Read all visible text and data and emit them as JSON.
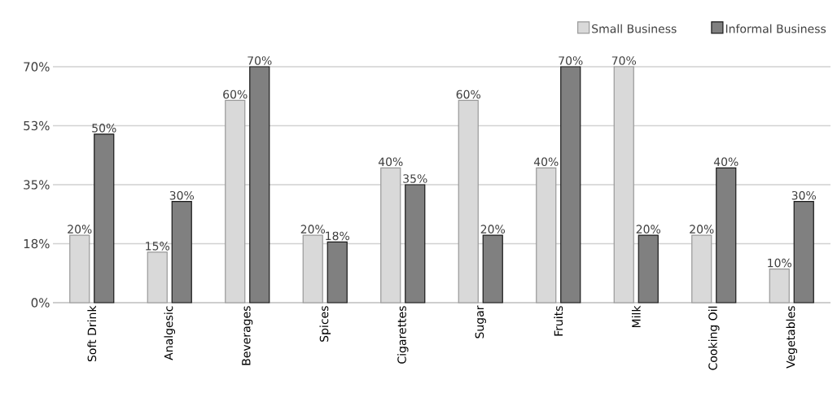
{
  "chart_data": {
    "type": "bar",
    "categories": [
      "Soft Drink",
      "Analgesic",
      "Beverages",
      "Spices",
      "Cigarettes",
      "Sugar",
      "Fruits",
      "Milk",
      "Cooking Oil",
      "Vegetables"
    ],
    "series": [
      {
        "name": "Small Business",
        "color": "#d9d9d9",
        "values": [
          20,
          15,
          60,
          20,
          40,
          60,
          40,
          70,
          20,
          10
        ],
        "value_labels": [
          "20%",
          "15%",
          "60%",
          "20%",
          "40%",
          "60%",
          "40%",
          "70%",
          "20%",
          "10%"
        ]
      },
      {
        "name": "Informal Business",
        "color": "#808080",
        "values": [
          50,
          30,
          70,
          18,
          35,
          20,
          70,
          20,
          40,
          30
        ],
        "value_labels": [
          "50%",
          "30%",
          "70%",
          "18%",
          "35%",
          "20%",
          "70%",
          "20%",
          "40%",
          "30%"
        ]
      }
    ],
    "ylim": [
      0,
      70
    ],
    "yticks": [
      {
        "value": 0,
        "label": "0%"
      },
      {
        "value": 17.5,
        "label": "18%"
      },
      {
        "value": 35,
        "label": "35%"
      },
      {
        "value": 52.5,
        "label": "53%"
      },
      {
        "value": 70,
        "label": "70%"
      }
    ],
    "grid": "y",
    "legend": "top right"
  }
}
